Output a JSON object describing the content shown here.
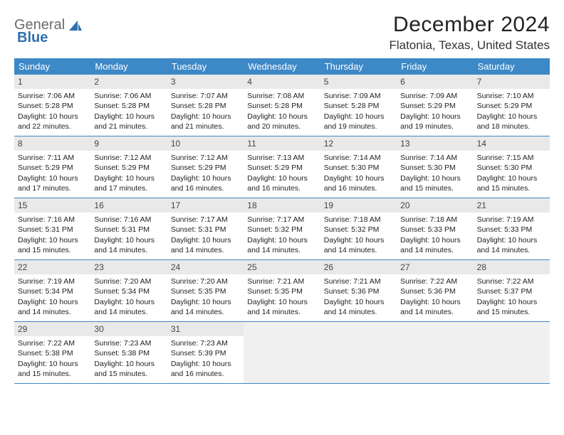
{
  "brand": {
    "part1": "General",
    "part2": "Blue"
  },
  "title": "December 2024",
  "location": "Flatonia, Texas, United States",
  "colors": {
    "header_bg": "#3d88c7",
    "header_text": "#ffffff",
    "daynum_bg": "#e9e9e9",
    "rule": "#3d88c7",
    "empty_bg": "#f0f0f0",
    "text": "#222222"
  },
  "weekdays": [
    "Sunday",
    "Monday",
    "Tuesday",
    "Wednesday",
    "Thursday",
    "Friday",
    "Saturday"
  ],
  "first_weekday_offset": 0,
  "days": [
    {
      "n": 1,
      "sunrise": "7:06 AM",
      "sunset": "5:28 PM",
      "daylight": "10 hours and 22 minutes."
    },
    {
      "n": 2,
      "sunrise": "7:06 AM",
      "sunset": "5:28 PM",
      "daylight": "10 hours and 21 minutes."
    },
    {
      "n": 3,
      "sunrise": "7:07 AM",
      "sunset": "5:28 PM",
      "daylight": "10 hours and 21 minutes."
    },
    {
      "n": 4,
      "sunrise": "7:08 AM",
      "sunset": "5:28 PM",
      "daylight": "10 hours and 20 minutes."
    },
    {
      "n": 5,
      "sunrise": "7:09 AM",
      "sunset": "5:28 PM",
      "daylight": "10 hours and 19 minutes."
    },
    {
      "n": 6,
      "sunrise": "7:09 AM",
      "sunset": "5:29 PM",
      "daylight": "10 hours and 19 minutes."
    },
    {
      "n": 7,
      "sunrise": "7:10 AM",
      "sunset": "5:29 PM",
      "daylight": "10 hours and 18 minutes."
    },
    {
      "n": 8,
      "sunrise": "7:11 AM",
      "sunset": "5:29 PM",
      "daylight": "10 hours and 17 minutes."
    },
    {
      "n": 9,
      "sunrise": "7:12 AM",
      "sunset": "5:29 PM",
      "daylight": "10 hours and 17 minutes."
    },
    {
      "n": 10,
      "sunrise": "7:12 AM",
      "sunset": "5:29 PM",
      "daylight": "10 hours and 16 minutes."
    },
    {
      "n": 11,
      "sunrise": "7:13 AM",
      "sunset": "5:29 PM",
      "daylight": "10 hours and 16 minutes."
    },
    {
      "n": 12,
      "sunrise": "7:14 AM",
      "sunset": "5:30 PM",
      "daylight": "10 hours and 16 minutes."
    },
    {
      "n": 13,
      "sunrise": "7:14 AM",
      "sunset": "5:30 PM",
      "daylight": "10 hours and 15 minutes."
    },
    {
      "n": 14,
      "sunrise": "7:15 AM",
      "sunset": "5:30 PM",
      "daylight": "10 hours and 15 minutes."
    },
    {
      "n": 15,
      "sunrise": "7:16 AM",
      "sunset": "5:31 PM",
      "daylight": "10 hours and 15 minutes."
    },
    {
      "n": 16,
      "sunrise": "7:16 AM",
      "sunset": "5:31 PM",
      "daylight": "10 hours and 14 minutes."
    },
    {
      "n": 17,
      "sunrise": "7:17 AM",
      "sunset": "5:31 PM",
      "daylight": "10 hours and 14 minutes."
    },
    {
      "n": 18,
      "sunrise": "7:17 AM",
      "sunset": "5:32 PM",
      "daylight": "10 hours and 14 minutes."
    },
    {
      "n": 19,
      "sunrise": "7:18 AM",
      "sunset": "5:32 PM",
      "daylight": "10 hours and 14 minutes."
    },
    {
      "n": 20,
      "sunrise": "7:18 AM",
      "sunset": "5:33 PM",
      "daylight": "10 hours and 14 minutes."
    },
    {
      "n": 21,
      "sunrise": "7:19 AM",
      "sunset": "5:33 PM",
      "daylight": "10 hours and 14 minutes."
    },
    {
      "n": 22,
      "sunrise": "7:19 AM",
      "sunset": "5:34 PM",
      "daylight": "10 hours and 14 minutes."
    },
    {
      "n": 23,
      "sunrise": "7:20 AM",
      "sunset": "5:34 PM",
      "daylight": "10 hours and 14 minutes."
    },
    {
      "n": 24,
      "sunrise": "7:20 AM",
      "sunset": "5:35 PM",
      "daylight": "10 hours and 14 minutes."
    },
    {
      "n": 25,
      "sunrise": "7:21 AM",
      "sunset": "5:35 PM",
      "daylight": "10 hours and 14 minutes."
    },
    {
      "n": 26,
      "sunrise": "7:21 AM",
      "sunset": "5:36 PM",
      "daylight": "10 hours and 14 minutes."
    },
    {
      "n": 27,
      "sunrise": "7:22 AM",
      "sunset": "5:36 PM",
      "daylight": "10 hours and 14 minutes."
    },
    {
      "n": 28,
      "sunrise": "7:22 AM",
      "sunset": "5:37 PM",
      "daylight": "10 hours and 15 minutes."
    },
    {
      "n": 29,
      "sunrise": "7:22 AM",
      "sunset": "5:38 PM",
      "daylight": "10 hours and 15 minutes."
    },
    {
      "n": 30,
      "sunrise": "7:23 AM",
      "sunset": "5:38 PM",
      "daylight": "10 hours and 15 minutes."
    },
    {
      "n": 31,
      "sunrise": "7:23 AM",
      "sunset": "5:39 PM",
      "daylight": "10 hours and 16 minutes."
    }
  ],
  "labels": {
    "sunrise_prefix": "Sunrise: ",
    "sunset_prefix": "Sunset: ",
    "daylight_prefix": "Daylight: "
  }
}
